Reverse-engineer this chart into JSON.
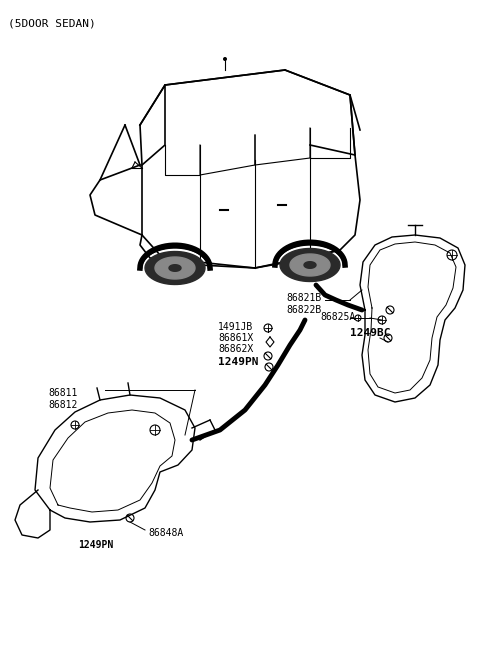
{
  "title": "(5DOOR SEDAN)",
  "background_color": "#ffffff",
  "line_color": "#000000",
  "text_color": "#000000",
  "labels": {
    "top_left": "(5DOOR SEDAN)",
    "86811_86812": "86811\n86812",
    "1491JB": "1491JB",
    "86861X": "86861X",
    "86862X": "86862X",
    "1249PN_center": "1249PN",
    "86821B_86822B": "86821B\n86822B",
    "86825A": "86825A",
    "1249BC": "1249BC",
    "86848A": "86848A",
    "1249PN_bottom": "1249PN"
  },
  "figsize": [
    4.8,
    6.56
  ],
  "dpi": 100
}
